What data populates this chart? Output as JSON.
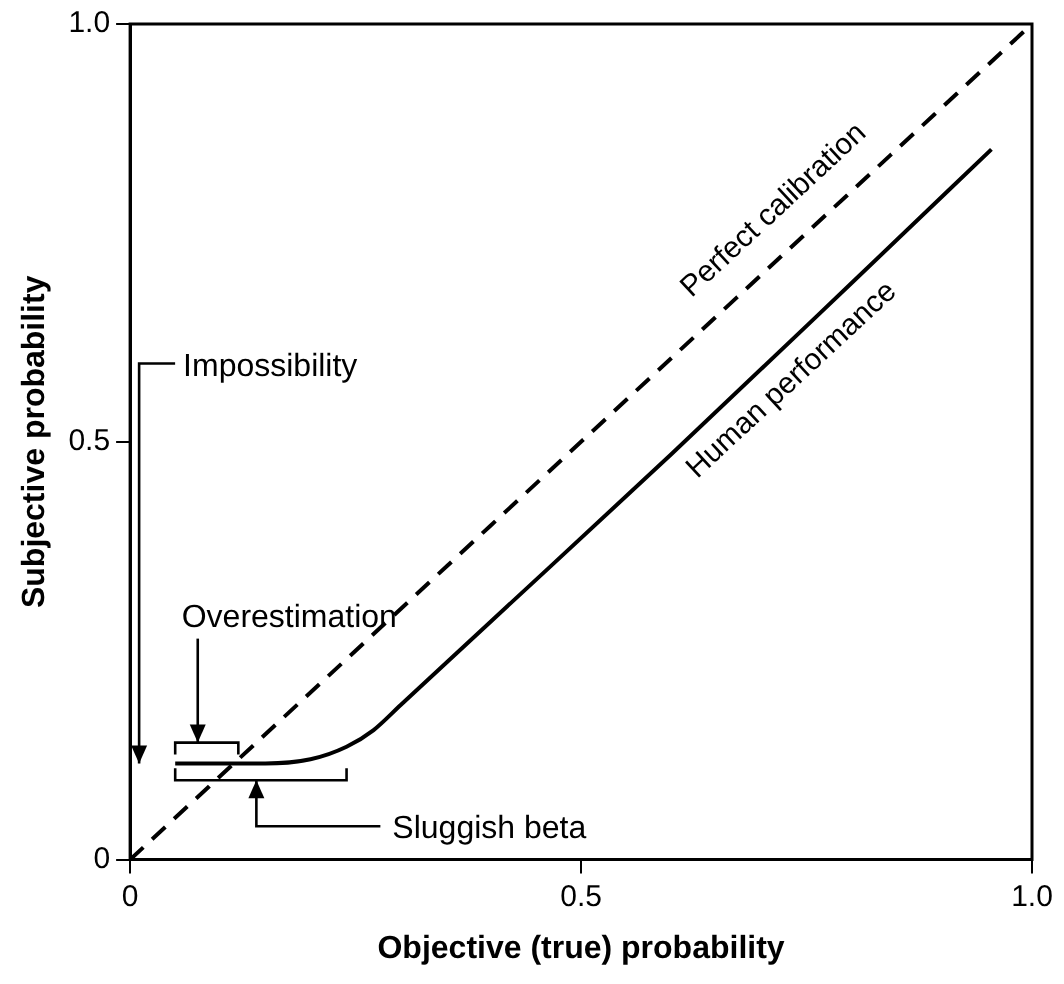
{
  "chart_data": {
    "type": "line",
    "xlabel": "Objective (true) probability",
    "ylabel": "Subjective probability",
    "xlim": [
      0,
      1
    ],
    "ylim": [
      0,
      1
    ],
    "xticks": [
      0,
      0.5,
      {
        "value": 1,
        "label": "1.0"
      }
    ],
    "yticks": [
      0,
      0.5,
      {
        "value": 1,
        "label": "1.0"
      }
    ],
    "grid": false,
    "legend": false,
    "marker": "none",
    "series": [
      {
        "name": "Perfect calibration",
        "color": "#000000",
        "line_style": "dashed",
        "x": [
          0,
          1
        ],
        "values": [
          0,
          1
        ]
      },
      {
        "name": "Human performance",
        "color": "#000000",
        "line_style": "solid",
        "x": [
          0.05,
          0.15,
          0.2,
          0.24,
          0.27,
          0.3,
          0.4,
          0.6,
          0.8,
          0.955
        ],
        "values": [
          0.115,
          0.115,
          0.12,
          0.135,
          0.155,
          0.185,
          0.285,
          0.485,
          0.69,
          0.85
        ]
      }
    ],
    "annotations": [
      "Impossibility",
      "Overestimation",
      "Sluggish beta"
    ]
  }
}
